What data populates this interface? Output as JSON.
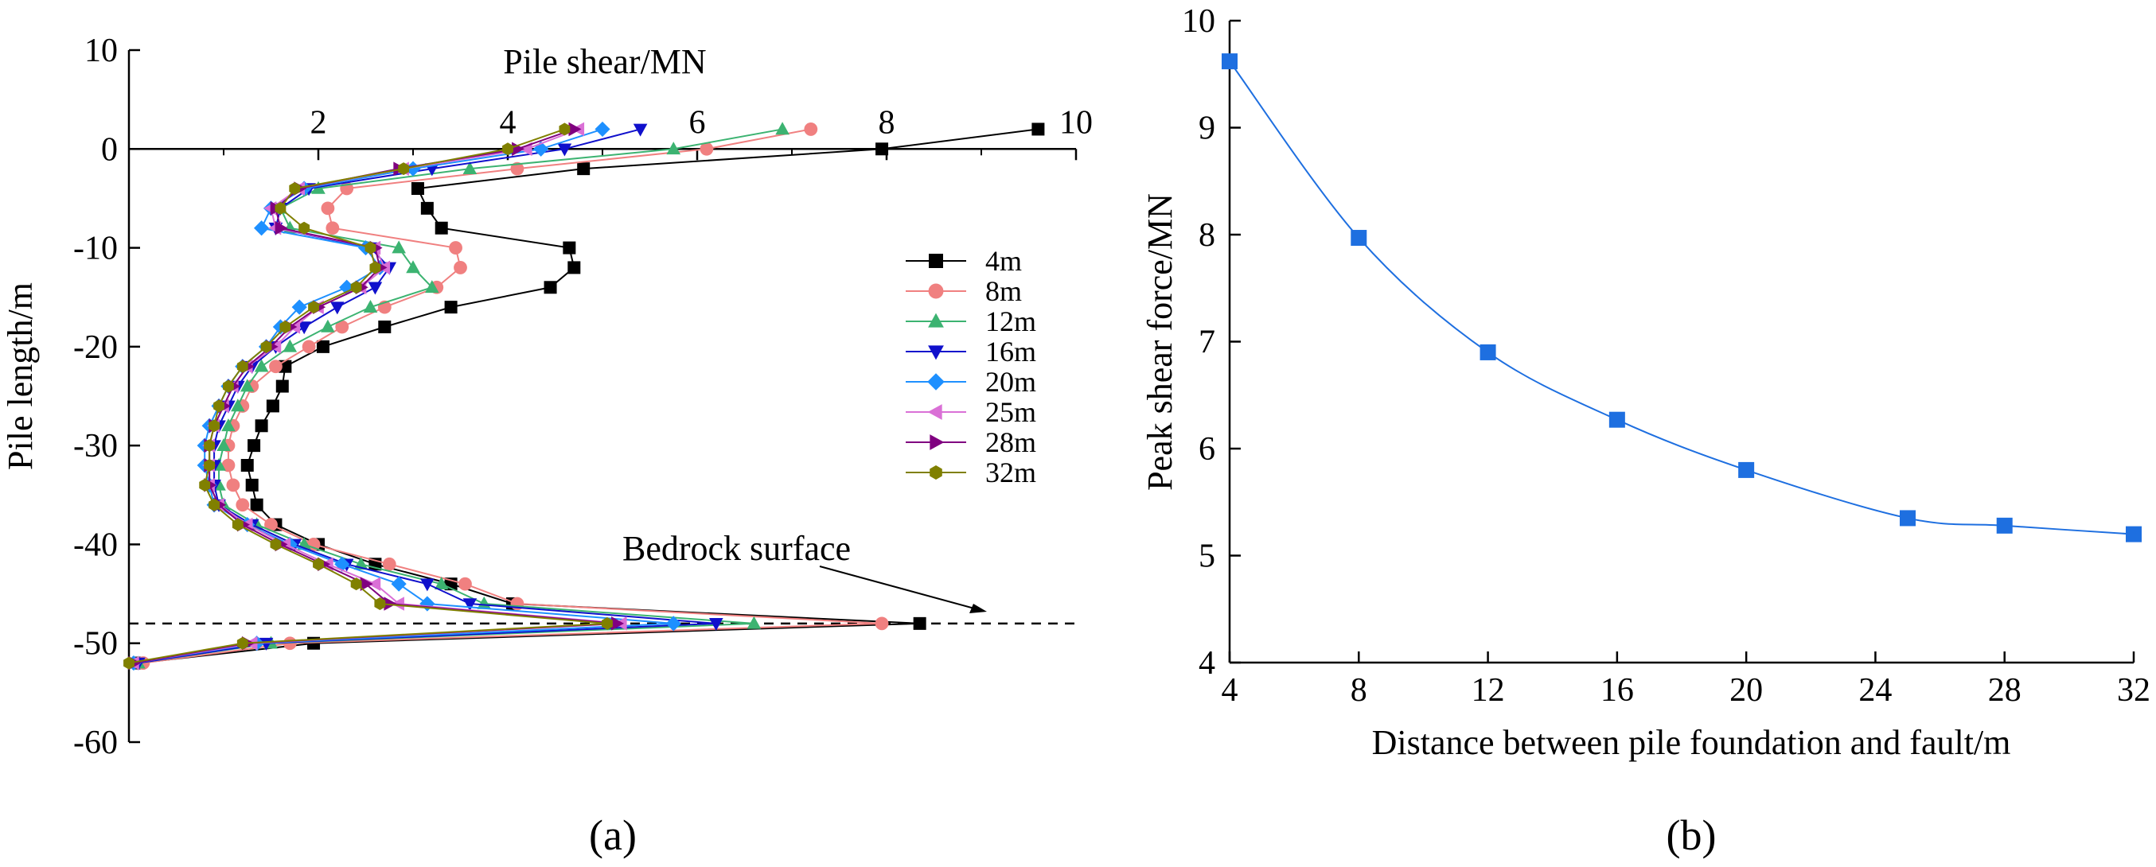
{
  "chart_data": [
    {
      "type": "line",
      "panel_label": "(a)",
      "title": "",
      "xlabel": "Pile shear/MN",
      "ylabel": "Pile length/m",
      "xlim": [
        0,
        10
      ],
      "ylim": [
        -60,
        10
      ],
      "xticks": [
        2,
        4,
        6,
        8,
        10
      ],
      "yticks": [
        10,
        0,
        -10,
        -20,
        -30,
        -40,
        -50,
        -60
      ],
      "x_axis_position": "top, at y=0",
      "grid": false,
      "legend_position": "right",
      "annotation": {
        "text": "Bedrock surface",
        "at_y": -48
      },
      "reference_line": {
        "y": -48,
        "style": "dashed"
      },
      "series": [
        {
          "name": "4m",
          "marker": "square",
          "color": "#000000",
          "x": [
            9.6,
            7.95,
            4.8,
            3.05,
            3.15,
            3.3,
            4.65,
            4.7,
            4.45,
            3.4,
            2.7,
            2.05,
            1.65,
            1.62,
            1.52,
            1.4,
            1.32,
            1.25,
            1.3,
            1.35,
            1.55,
            2.0,
            2.6,
            3.4,
            4.05,
            8.35,
            1.95,
            0.1
          ],
          "y": [
            2,
            0,
            -2,
            -4,
            -6,
            -8,
            -10,
            -12,
            -14,
            -16,
            -18,
            -20,
            -22,
            -24,
            -26,
            -28,
            -30,
            -32,
            -34,
            -36,
            -38,
            -40,
            -42,
            -44,
            -46,
            -48,
            -50,
            -52
          ]
        },
        {
          "name": "8m",
          "marker": "circle",
          "color": "#f08080",
          "x": [
            7.2,
            6.1,
            4.1,
            2.3,
            2.1,
            2.15,
            3.45,
            3.5,
            3.25,
            2.7,
            2.25,
            1.9,
            1.55,
            1.3,
            1.2,
            1.1,
            1.05,
            1.05,
            1.1,
            1.2,
            1.5,
            1.95,
            2.75,
            3.55,
            4.1,
            7.95,
            1.7,
            0.15
          ],
          "y": [
            2,
            0,
            -2,
            -4,
            -6,
            -8,
            -10,
            -12,
            -14,
            -16,
            -18,
            -20,
            -22,
            -24,
            -26,
            -28,
            -30,
            -32,
            -34,
            -36,
            -38,
            -40,
            -42,
            -44,
            -46,
            -48,
            -50,
            -52
          ]
        },
        {
          "name": "12m",
          "marker": "triangle-up",
          "color": "#3cb371",
          "x": [
            6.9,
            5.75,
            3.6,
            2.0,
            1.6,
            1.7,
            2.85,
            3.0,
            3.2,
            2.55,
            2.1,
            1.7,
            1.4,
            1.25,
            1.15,
            1.05,
            1.0,
            0.95,
            0.95,
            1.0,
            1.35,
            1.85,
            2.45,
            3.3,
            3.75,
            6.6,
            1.5,
            0.1
          ],
          "y": [
            2,
            0,
            -2,
            -4,
            -6,
            -8,
            -10,
            -12,
            -14,
            -16,
            -18,
            -20,
            -22,
            -24,
            -26,
            -28,
            -30,
            -32,
            -34,
            -36,
            -38,
            -40,
            -42,
            -44,
            -46,
            -48,
            -50,
            -52
          ]
        },
        {
          "name": "16m",
          "marker": "triangle-down",
          "color": "#1010cc",
          "x": [
            5.4,
            4.6,
            3.2,
            1.9,
            1.6,
            1.55,
            2.55,
            2.75,
            2.6,
            2.2,
            1.85,
            1.55,
            1.3,
            1.15,
            1.05,
            0.95,
            0.9,
            0.9,
            0.9,
            0.95,
            1.3,
            1.75,
            2.3,
            3.15,
            3.6,
            6.2,
            1.45,
            0.1
          ],
          "y": [
            2,
            0,
            -2,
            -4,
            -6,
            -8,
            -10,
            -12,
            -14,
            -16,
            -18,
            -20,
            -22,
            -24,
            -26,
            -28,
            -30,
            -32,
            -34,
            -36,
            -38,
            -40,
            -42,
            -44,
            -46,
            -48,
            -50,
            -52
          ]
        },
        {
          "name": "20m",
          "marker": "diamond",
          "color": "#1e90ff",
          "x": [
            5.0,
            4.35,
            3.0,
            1.85,
            1.5,
            1.4,
            2.5,
            2.65,
            2.3,
            1.8,
            1.6,
            1.45,
            1.2,
            1.05,
            0.95,
            0.85,
            0.8,
            0.8,
            0.85,
            0.9,
            1.25,
            1.7,
            2.25,
            2.85,
            3.15,
            5.75,
            1.35,
            0.05
          ],
          "y": [
            2,
            0,
            -2,
            -4,
            -6,
            -8,
            -10,
            -12,
            -14,
            -16,
            -18,
            -20,
            -22,
            -24,
            -26,
            -28,
            -30,
            -32,
            -34,
            -36,
            -38,
            -40,
            -42,
            -44,
            -46,
            -48,
            -50,
            -52
          ]
        },
        {
          "name": "25m",
          "marker": "triangle-left",
          "color": "#da70d6",
          "x": [
            4.75,
            4.2,
            2.9,
            1.8,
            1.5,
            1.55,
            2.6,
            2.7,
            2.45,
            2.0,
            1.75,
            1.55,
            1.25,
            1.1,
            1.0,
            0.9,
            0.85,
            0.85,
            0.85,
            0.95,
            1.25,
            1.65,
            2.1,
            2.6,
            2.85,
            5.2,
            1.3,
            0.05
          ],
          "y": [
            2,
            0,
            -2,
            -4,
            -6,
            -8,
            -10,
            -12,
            -14,
            -16,
            -18,
            -20,
            -22,
            -24,
            -26,
            -28,
            -30,
            -32,
            -34,
            -36,
            -38,
            -40,
            -42,
            -44,
            -46,
            -48,
            -50,
            -52
          ]
        },
        {
          "name": "28m",
          "marker": "triangle-right",
          "color": "#800080",
          "x": [
            4.7,
            4.1,
            2.85,
            1.8,
            1.55,
            1.6,
            2.6,
            2.65,
            2.45,
            2.0,
            1.7,
            1.5,
            1.25,
            1.1,
            1.0,
            0.9,
            0.85,
            0.85,
            0.85,
            0.95,
            1.2,
            1.6,
            2.05,
            2.5,
            2.75,
            5.15,
            1.25,
            0.05
          ],
          "y": [
            2,
            0,
            -2,
            -4,
            -6,
            -8,
            -10,
            -12,
            -14,
            -16,
            -18,
            -20,
            -22,
            -24,
            -26,
            -28,
            -30,
            -32,
            -34,
            -36,
            -38,
            -40,
            -42,
            -44,
            -46,
            -48,
            -50,
            -52
          ]
        },
        {
          "name": "32m",
          "marker": "hexagon",
          "color": "#808000",
          "x": [
            4.6,
            4.0,
            2.9,
            1.75,
            1.6,
            1.85,
            2.55,
            2.6,
            2.4,
            1.95,
            1.65,
            1.45,
            1.2,
            1.05,
            0.95,
            0.9,
            0.85,
            0.85,
            0.8,
            0.9,
            1.15,
            1.55,
            2.0,
            2.4,
            2.65,
            5.05,
            1.2,
            0.0
          ],
          "y": [
            2,
            0,
            -2,
            -4,
            -6,
            -8,
            -10,
            -12,
            -14,
            -16,
            -18,
            -20,
            -22,
            -24,
            -26,
            -28,
            -30,
            -32,
            -34,
            -36,
            -38,
            -40,
            -42,
            -44,
            -46,
            -48,
            -50,
            -52
          ]
        }
      ]
    },
    {
      "type": "line",
      "panel_label": "(b)",
      "title": "",
      "xlabel": "Distance between pile foundation and fault/m",
      "ylabel": "Peak shear force/MN",
      "xlim": [
        4,
        32
      ],
      "ylim": [
        4,
        10
      ],
      "xticks": [
        4,
        8,
        12,
        16,
        20,
        24,
        28,
        32
      ],
      "yticks": [
        4,
        5,
        6,
        7,
        8,
        9,
        10
      ],
      "grid": false,
      "color": "#1e6fe0",
      "series": [
        {
          "name": "Peak shear force",
          "marker": "square",
          "x": [
            4,
            8,
            12,
            16,
            20,
            25,
            28,
            32
          ],
          "y": [
            9.62,
            7.97,
            6.9,
            6.27,
            5.8,
            5.35,
            5.28,
            5.2
          ]
        }
      ]
    }
  ]
}
